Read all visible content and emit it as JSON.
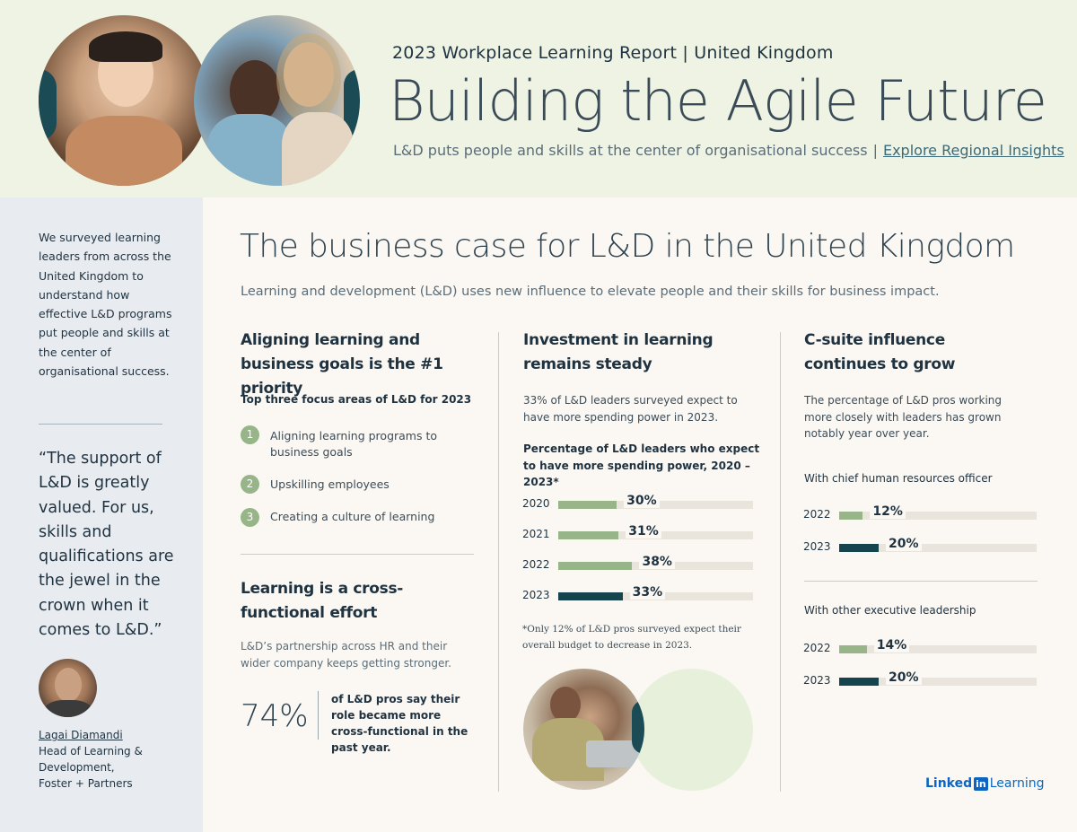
{
  "header": {
    "subtitle": "2023 Workplace Learning Report  |  United Kingdom",
    "title": "Building the Agile Future",
    "tagline": "L&D puts people and skills at the center of organisational success",
    "tagline_separator": "|",
    "link": "Explore Regional Insights"
  },
  "sidebar": {
    "intro": "We surveyed learning leaders from across the United Kingdom to understand how effective L&D programs put people and skills at the center of organisational success.",
    "quote": "“The support of L&D is greatly valued. For us, skills and qualifications are the jewel in the crown when it comes to L&D.”",
    "person_name": "Lagai Diamandi",
    "person_role": "Head of Learning & Development,",
    "person_org": "Foster + Partners"
  },
  "main": {
    "title": "The business case for L&D in the United Kingdom",
    "subtitle": "Learning and development (L&D) uses new influence to elevate people and their skills for business impact."
  },
  "col1": {
    "heading": "Aligning learning and business goals is the #1 priority",
    "focus_label": "Top three focus areas of L&D for 2023",
    "focus_items": [
      {
        "num": "1",
        "text": "Aligning learning programs to business goals"
      },
      {
        "num": "2",
        "text": "Upskilling employees"
      },
      {
        "num": "3",
        "text": "Creating a culture of learning"
      }
    ],
    "heading2": "Learning is a cross-functional effort",
    "body2": "L&D’s partnership across HR and their wider company keeps getting stronger.",
    "big_pct": "74%",
    "big_pct_text": "of L&D pros say their role became more cross-functional in the past year."
  },
  "col2": {
    "heading": "Investment in learning remains steady",
    "body": "33% of L&D leaders surveyed expect to have more spending power in 2023.",
    "chart_label": "Percentage of L&D leaders who expect to have more spending power, 2020 – 2023*",
    "footnote": "*Only 12% of L&D pros surveyed expect their overall budget to decrease in 2023."
  },
  "col3": {
    "heading": "C-suite influence continues to grow",
    "body": "The percentage of L&D pros working more closely with leaders has grown notably year over year.",
    "group1_label": "With chief human resources officer",
    "group2_label": "With other executive leadership"
  },
  "chart_data": [
    {
      "type": "bar",
      "title": "Percentage of L&D leaders who expect to have more spending power, 2020 – 2023*",
      "categories": [
        "2020",
        "2021",
        "2022",
        "2023"
      ],
      "values": [
        30,
        31,
        38,
        33
      ],
      "labels": [
        "30%",
        "31%",
        "38%",
        "33%"
      ],
      "colors": [
        "#97b589",
        "#97b589",
        "#97b589",
        "#15444f"
      ],
      "max": 100
    },
    {
      "type": "bar",
      "title": "With chief human resources officer",
      "categories": [
        "2022",
        "2023"
      ],
      "values": [
        12,
        20
      ],
      "labels": [
        "12%",
        "20%"
      ],
      "colors": [
        "#97b589",
        "#15444f"
      ],
      "max": 100
    },
    {
      "type": "bar",
      "title": "With other executive leadership",
      "categories": [
        "2022",
        "2023"
      ],
      "values": [
        14,
        20
      ],
      "labels": [
        "14%",
        "20%"
      ],
      "colors": [
        "#97b589",
        "#15444f"
      ],
      "max": 100
    }
  ],
  "logo": {
    "brand": "Linked",
    "box": "in",
    "product": "Learning"
  },
  "colors": {
    "header_bg": "#eef3e4",
    "sidebar_bg": "#e8ecf0",
    "accent_green": "#97b589",
    "accent_dark": "#15444f"
  }
}
